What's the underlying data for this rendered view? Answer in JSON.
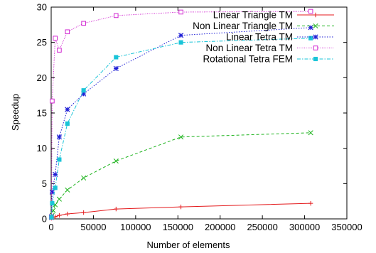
{
  "chart_data": {
    "type": "line",
    "title": "",
    "xlabel": "Number of elements",
    "ylabel": "Speedup",
    "xlim": [
      0,
      350000
    ],
    "ylim": [
      0,
      30
    ],
    "xticks": [
      0,
      50000,
      100000,
      150000,
      200000,
      250000,
      300000,
      350000
    ],
    "yticks": [
      0,
      5,
      10,
      15,
      20,
      25,
      30
    ],
    "grid": false,
    "legend_position": "top-right",
    "series": [
      {
        "name": "Linear Triangle TM",
        "color": "#e41a1c",
        "marker": "plus",
        "dash": "solid",
        "points": [
          [
            300,
            0.1
          ],
          [
            1200,
            0.2
          ],
          [
            2400,
            0.25
          ],
          [
            4800,
            0.3
          ],
          [
            9600,
            0.5
          ],
          [
            19200,
            0.7
          ],
          [
            38400,
            0.9
          ],
          [
            76800,
            1.4
          ],
          [
            153600,
            1.7
          ],
          [
            307200,
            2.2
          ]
        ]
      },
      {
        "name": "Non Linear Triangle TM",
        "color": "#1db31d",
        "marker": "cross",
        "dash": "dashed",
        "points": [
          [
            300,
            0.2
          ],
          [
            1200,
            0.5
          ],
          [
            2400,
            1.2
          ],
          [
            4800,
            2.0
          ],
          [
            9600,
            2.8
          ],
          [
            19200,
            4.1
          ],
          [
            38400,
            5.8
          ],
          [
            76800,
            8.2
          ],
          [
            153600,
            11.6
          ],
          [
            307200,
            12.2
          ]
        ]
      },
      {
        "name": "Linear Tetra TM",
        "color": "#1f1fd6",
        "marker": "star",
        "dash": "dotted",
        "points": [
          [
            300,
            0.3
          ],
          [
            1200,
            3.8
          ],
          [
            4800,
            6.3
          ],
          [
            9600,
            11.6
          ],
          [
            19200,
            15.5
          ],
          [
            38400,
            17.7
          ],
          [
            76800,
            21.3
          ],
          [
            153600,
            26.0
          ],
          [
            307200,
            27.1
          ]
        ]
      },
      {
        "name": "Non Linear Tetra TM",
        "color": "#d126d1",
        "marker": "square-open",
        "dash": "dotted-fine",
        "points": [
          [
            300,
            0.2
          ],
          [
            1200,
            16.7
          ],
          [
            4800,
            25.6
          ],
          [
            9600,
            23.9
          ],
          [
            19200,
            26.5
          ],
          [
            38400,
            27.7
          ],
          [
            76800,
            28.8
          ],
          [
            153600,
            29.3
          ],
          [
            307200,
            29.4
          ]
        ]
      },
      {
        "name": "Rotational Tetra FEM",
        "color": "#19c4d8",
        "marker": "square-filled",
        "dash": "dashdot",
        "points": [
          [
            300,
            0.2
          ],
          [
            1200,
            2.2
          ],
          [
            4800,
            4.4
          ],
          [
            9600,
            8.4
          ],
          [
            19200,
            13.5
          ],
          [
            38400,
            18.2
          ],
          [
            76800,
            22.9
          ],
          [
            153600,
            25.0
          ],
          [
            307200,
            25.6
          ]
        ]
      }
    ]
  }
}
